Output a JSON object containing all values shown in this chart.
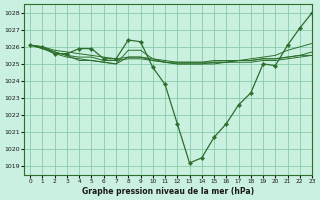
{
  "title": "Graphe pression niveau de la mer (hPa)",
  "background_color": "#caf0e0",
  "grid_color": "#88ccaa",
  "line_color": "#2d6e2d",
  "marker_color": "#2d6e2d",
  "xlim": [
    -0.5,
    23
  ],
  "ylim": [
    1018.5,
    1028.5
  ],
  "yticks": [
    1019,
    1020,
    1021,
    1022,
    1023,
    1024,
    1025,
    1026,
    1027,
    1028
  ],
  "xticks": [
    0,
    1,
    2,
    3,
    4,
    5,
    6,
    7,
    8,
    9,
    10,
    11,
    12,
    13,
    14,
    15,
    16,
    17,
    18,
    19,
    20,
    21,
    22,
    23
  ],
  "lines": [
    {
      "hours": [
        0,
        1,
        2,
        3,
        4,
        5,
        6,
        7,
        8,
        9,
        10,
        11,
        12,
        13,
        14,
        15,
        16,
        17,
        18,
        19,
        20,
        21,
        22,
        23
      ],
      "pressure": [
        1026.1,
        1026.0,
        1025.6,
        1025.6,
        1025.9,
        1025.9,
        1025.3,
        1025.3,
        1026.4,
        1026.3,
        1024.8,
        1023.8,
        1021.5,
        1019.2,
        1019.5,
        1020.7,
        1021.5,
        1022.6,
        1023.3,
        1025.0,
        1024.9,
        1026.1,
        1027.1,
        1028.0
      ],
      "markers": true
    },
    {
      "hours": [
        0,
        1,
        2,
        3,
        4,
        5,
        6,
        7,
        8,
        9,
        10,
        11,
        12,
        13,
        14,
        15,
        16,
        17,
        18,
        19,
        20,
        21,
        22,
        23
      ],
      "pressure": [
        1026.1,
        1026.0,
        1025.7,
        1025.5,
        1025.4,
        1025.4,
        1025.2,
        1025.2,
        1025.3,
        1025.3,
        1025.2,
        1025.1,
        1025.1,
        1025.1,
        1025.1,
        1025.2,
        1025.2,
        1025.2,
        1025.2,
        1025.3,
        1025.3,
        1025.4,
        1025.5,
        1025.5
      ],
      "markers": false
    },
    {
      "hours": [
        0,
        1,
        2,
        3,
        4,
        5,
        6,
        7,
        8,
        9,
        10,
        11,
        12,
        13,
        14,
        15,
        16,
        17,
        18,
        19,
        20,
        21,
        22,
        23
      ],
      "pressure": [
        1026.1,
        1025.9,
        1025.6,
        1025.4,
        1025.3,
        1025.2,
        1025.1,
        1025.0,
        1025.4,
        1025.4,
        1025.2,
        1025.1,
        1025.0,
        1025.0,
        1025.0,
        1025.0,
        1025.1,
        1025.1,
        1025.1,
        1025.2,
        1025.2,
        1025.3,
        1025.4,
        1025.5
      ],
      "markers": false
    },
    {
      "hours": [
        0,
        1,
        2,
        3,
        4,
        5,
        6,
        7,
        8,
        9,
        10,
        11,
        12,
        13,
        14,
        15,
        16,
        17,
        18,
        19,
        20,
        21,
        22,
        23
      ],
      "pressure": [
        1026.1,
        1025.9,
        1025.7,
        1025.5,
        1025.2,
        1025.2,
        1025.1,
        1025.0,
        1025.8,
        1025.8,
        1025.3,
        1025.1,
        1025.0,
        1025.0,
        1025.0,
        1025.1,
        1025.1,
        1025.2,
        1025.3,
        1025.4,
        1025.5,
        1025.8,
        1026.0,
        1026.2
      ],
      "markers": false
    },
    {
      "hours": [
        0,
        1,
        2,
        3,
        4,
        5,
        6,
        7,
        8,
        9,
        10,
        11,
        12,
        13,
        14,
        15,
        16,
        17,
        18,
        19,
        20,
        21,
        22,
        23
      ],
      "pressure": [
        1026.1,
        1026.0,
        1025.8,
        1025.7,
        1025.6,
        1025.5,
        1025.4,
        1025.3,
        1025.4,
        1025.4,
        1025.3,
        1025.2,
        1025.1,
        1025.1,
        1025.1,
        1025.1,
        1025.1,
        1025.2,
        1025.2,
        1025.3,
        1025.3,
        1025.4,
        1025.5,
        1025.7
      ],
      "markers": false
    }
  ]
}
